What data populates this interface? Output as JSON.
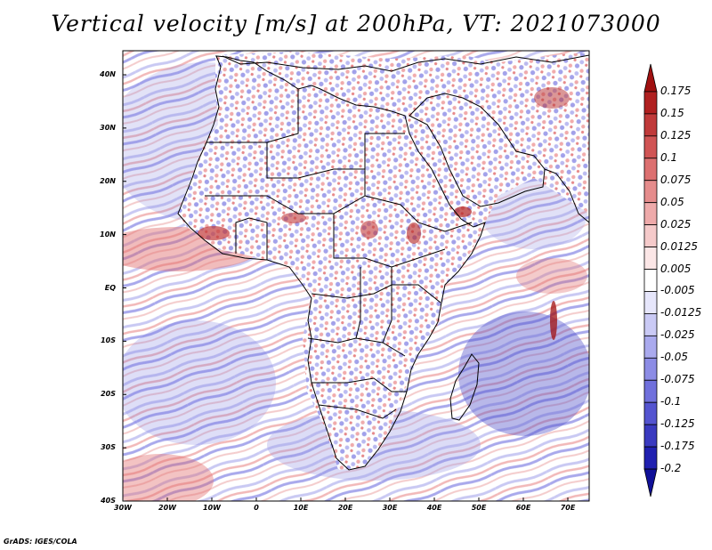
{
  "title": "Vertical velocity [m/s] at 200hPa, VT: 2021073000",
  "credit": "GrADS: IGES/COLA",
  "y_ticks": [
    "40N",
    "30N",
    "20N",
    "10N",
    "EQ",
    "10S",
    "20S",
    "30S",
    "40S"
  ],
  "x_ticks": [
    "30W",
    "20W",
    "10W",
    "0",
    "10E",
    "20E",
    "30E",
    "40E",
    "50E",
    "60E",
    "70E"
  ],
  "colorbar": {
    "labels": [
      "0.175",
      "0.15",
      "0.125",
      "0.1",
      "0.075",
      "0.05",
      "0.025",
      "0.0125",
      "0.005",
      "-0.005",
      "-0.0125",
      "-0.025",
      "-0.05",
      "-0.075",
      "-0.1",
      "-0.125",
      "-0.175",
      "-0.2"
    ],
    "colors": [
      "#a01010",
      "#b02020",
      "#c03a3a",
      "#d05454",
      "#dc7070",
      "#e58c8c",
      "#eeaaaa",
      "#f5caca",
      "#fbe6e6",
      "#ffffff",
      "#e6e6fb",
      "#cacaf5",
      "#aaaaee",
      "#8c8ce5",
      "#7070dc",
      "#5454d0",
      "#3a3ac0",
      "#2020b0",
      "#101098"
    ]
  },
  "map": {
    "lon_range": [
      -30,
      75
    ],
    "lat_range": [
      -40,
      45
    ],
    "field_colors": {
      "positive": "#e87070",
      "negative": "#7070dc",
      "neutral": "#ffffff"
    }
  }
}
